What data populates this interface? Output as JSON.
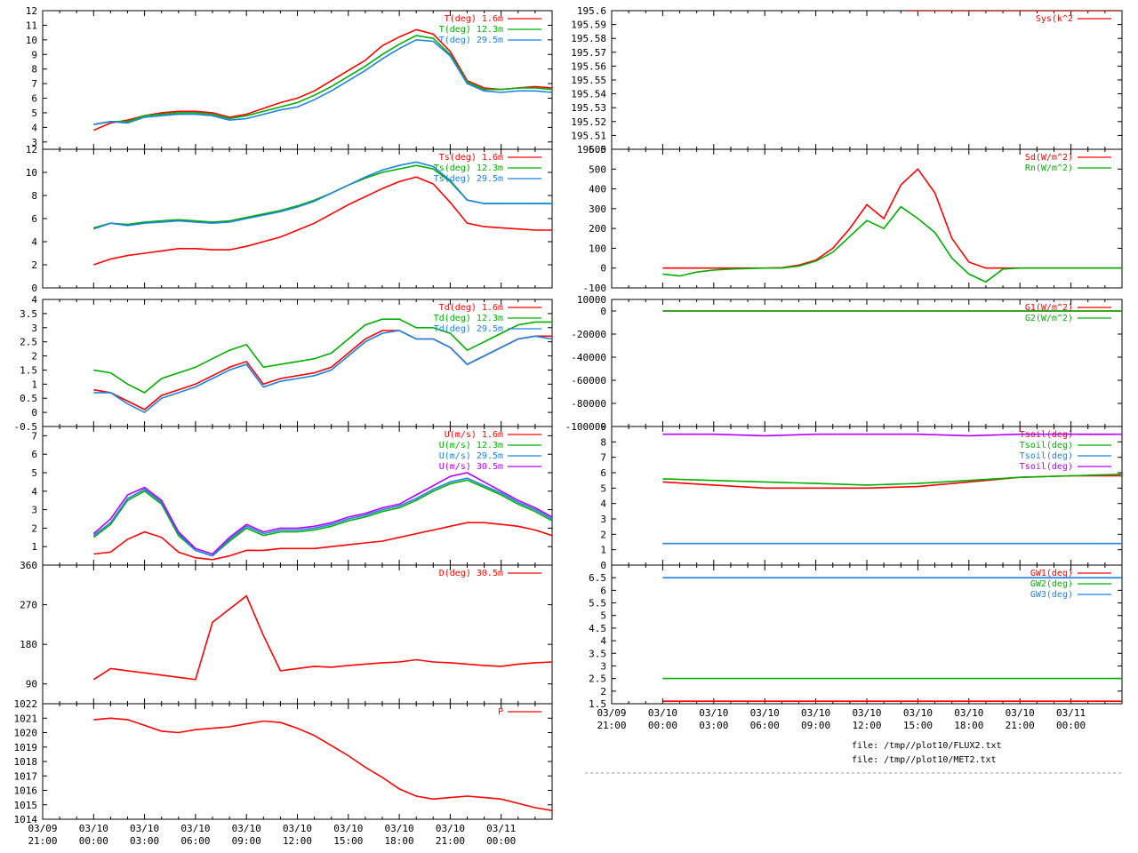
{
  "colors": {
    "red": "#ff0000",
    "green": "#00b000",
    "blue": "#1e82e6",
    "magenta": "#b400ff",
    "frame": "#000000"
  },
  "x_ticks": [
    {
      "date": "03/09",
      "time": "21:00"
    },
    {
      "date": "03/10",
      "time": "00:00"
    },
    {
      "date": "03/10",
      "time": "03:00"
    },
    {
      "date": "03/10",
      "time": "06:00"
    },
    {
      "date": "03/10",
      "time": "09:00"
    },
    {
      "date": "03/10",
      "time": "12:00"
    },
    {
      "date": "03/10",
      "time": "15:00"
    },
    {
      "date": "03/10",
      "time": "18:00"
    },
    {
      "date": "03/10",
      "time": "21:00"
    },
    {
      "date": "03/11",
      "time": "00:00"
    }
  ],
  "footer": {
    "file1": "file: /tmp//plot10/FLUX2.txt",
    "file2": "file: /tmp//plot10/MET2.txt"
  },
  "chart_data": [
    {
      "id": "T",
      "type": "line",
      "ylim": [
        2.5,
        12
      ],
      "yticks": [
        "3",
        "4",
        "5",
        "6",
        "7",
        "8",
        "9",
        "10",
        "11",
        "12"
      ],
      "x_hours": [
        0,
        1,
        2,
        3,
        4,
        5,
        6,
        7,
        8,
        9,
        10,
        11,
        12,
        13,
        14,
        15,
        16,
        17,
        18,
        19,
        20,
        21,
        22,
        23,
        24,
        25,
        26,
        27
      ],
      "series": [
        {
          "name": "T(deg)  1.6m",
          "color": "red",
          "values": [
            3.8,
            4.3,
            4.5,
            4.8,
            5.0,
            5.1,
            5.1,
            5.0,
            4.7,
            4.9,
            5.3,
            5.7,
            6.0,
            6.5,
            7.2,
            7.9,
            8.6,
            9.6,
            10.2,
            10.7,
            10.4,
            9.2,
            7.2,
            6.7,
            6.6,
            6.7,
            6.8,
            6.7
          ]
        },
        {
          "name": "T(deg)  12.3m",
          "color": "green",
          "values": [
            4.2,
            4.4,
            4.4,
            4.8,
            4.9,
            5.0,
            5.0,
            4.9,
            4.6,
            4.8,
            5.1,
            5.4,
            5.7,
            6.2,
            6.8,
            7.5,
            8.2,
            9.0,
            9.7,
            10.3,
            10.1,
            9.0,
            7.1,
            6.6,
            6.6,
            6.7,
            6.7,
            6.6
          ]
        },
        {
          "name": "T(deg)  29.5m",
          "color": "blue",
          "values": [
            4.2,
            4.4,
            4.3,
            4.7,
            4.8,
            4.9,
            4.9,
            4.8,
            4.5,
            4.6,
            4.9,
            5.2,
            5.4,
            5.9,
            6.5,
            7.2,
            7.9,
            8.7,
            9.4,
            10.0,
            9.9,
            8.9,
            7.0,
            6.5,
            6.4,
            6.5,
            6.5,
            6.4
          ]
        }
      ]
    },
    {
      "id": "Ts",
      "type": "line",
      "ylim": [
        0,
        12
      ],
      "yticks": [
        "0",
        "2",
        "4",
        "6",
        "8",
        "10",
        "12"
      ],
      "x_hours": [
        0,
        1,
        2,
        3,
        4,
        5,
        6,
        7,
        8,
        9,
        10,
        11,
        12,
        13,
        14,
        15,
        16,
        17,
        18,
        19,
        20,
        21,
        22,
        23,
        24,
        25,
        26,
        27
      ],
      "series": [
        {
          "name": "Ts(deg)  1.6m",
          "color": "red",
          "values": [
            2.0,
            2.5,
            2.8,
            3.0,
            3.2,
            3.4,
            3.4,
            3.3,
            3.3,
            3.6,
            4.0,
            4.4,
            5.0,
            5.6,
            6.4,
            7.2,
            7.9,
            8.6,
            9.2,
            9.6,
            9.0,
            7.4,
            5.6,
            5.3,
            5.2,
            5.1,
            5.0,
            5.0
          ]
        },
        {
          "name": "Ts(deg)  12.3m",
          "color": "green",
          "values": [
            5.2,
            5.6,
            5.5,
            5.7,
            5.8,
            5.9,
            5.8,
            5.7,
            5.8,
            6.1,
            6.4,
            6.7,
            7.1,
            7.6,
            8.2,
            8.9,
            9.5,
            10.0,
            10.3,
            10.6,
            10.3,
            9.2,
            7.6,
            7.3,
            7.3,
            7.3,
            7.3,
            7.3
          ]
        },
        {
          "name": "Ts(deg)  29.5m",
          "color": "blue",
          "values": [
            5.1,
            5.6,
            5.4,
            5.6,
            5.7,
            5.8,
            5.7,
            5.6,
            5.7,
            6.0,
            6.3,
            6.6,
            7.0,
            7.5,
            8.2,
            8.9,
            9.6,
            10.2,
            10.6,
            10.9,
            10.5,
            9.3,
            7.6,
            7.3,
            7.3,
            7.3,
            7.3,
            7.3
          ]
        }
      ]
    },
    {
      "id": "Td",
      "type": "line",
      "ylim": [
        -0.5,
        4
      ],
      "yticks": [
        "-0.5",
        "0",
        "0.5",
        "1",
        "1.5",
        "2",
        "2.5",
        "3",
        "3.5",
        "4"
      ],
      "x_hours": [
        0,
        1,
        2,
        3,
        4,
        5,
        6,
        7,
        8,
        9,
        10,
        11,
        12,
        13,
        14,
        15,
        16,
        17,
        18,
        19,
        20,
        21,
        22,
        23,
        24,
        25,
        26,
        27
      ],
      "series": [
        {
          "name": "Td(deg)  1.6m",
          "color": "red",
          "values": [
            0.8,
            0.7,
            0.4,
            0.1,
            0.6,
            0.8,
            1.0,
            1.3,
            1.6,
            1.8,
            1.0,
            1.2,
            1.3,
            1.4,
            1.6,
            2.1,
            2.6,
            2.9,
            2.9,
            2.6,
            2.6,
            2.3,
            1.7,
            2.0,
            2.3,
            2.6,
            2.7,
            2.7
          ]
        },
        {
          "name": "Td(deg)  12.3m",
          "color": "green",
          "values": [
            1.5,
            1.4,
            1.0,
            0.7,
            1.2,
            1.4,
            1.6,
            1.9,
            2.2,
            2.4,
            1.6,
            1.7,
            1.8,
            1.9,
            2.1,
            2.6,
            3.1,
            3.3,
            3.3,
            3.0,
            3.0,
            2.8,
            2.2,
            2.5,
            2.8,
            3.1,
            3.2,
            3.2
          ]
        },
        {
          "name": "Td(deg)  29.5m",
          "color": "blue",
          "values": [
            0.7,
            0.7,
            0.3,
            0.0,
            0.5,
            0.7,
            0.9,
            1.2,
            1.5,
            1.7,
            0.9,
            1.1,
            1.2,
            1.3,
            1.5,
            2.0,
            2.5,
            2.8,
            2.9,
            2.6,
            2.6,
            2.3,
            1.7,
            2.0,
            2.3,
            2.6,
            2.7,
            2.6
          ]
        }
      ]
    },
    {
      "id": "U",
      "type": "line",
      "ylim": [
        0,
        7.5
      ],
      "yticks": [
        "1",
        "2",
        "3",
        "4",
        "5",
        "6",
        "7"
      ],
      "x_hours": [
        0,
        1,
        2,
        3,
        4,
        5,
        6,
        7,
        8,
        9,
        10,
        11,
        12,
        13,
        14,
        15,
        16,
        17,
        18,
        19,
        20,
        21,
        22,
        23,
        24,
        25,
        26,
        27
      ],
      "series": [
        {
          "name": "U(m/s)  1.6m",
          "color": "red",
          "values": [
            0.6,
            0.7,
            1.4,
            1.8,
            1.5,
            0.7,
            0.4,
            0.3,
            0.5,
            0.8,
            0.8,
            0.9,
            0.9,
            0.9,
            1.0,
            1.1,
            1.2,
            1.3,
            1.5,
            1.7,
            1.9,
            2.1,
            2.3,
            2.3,
            2.2,
            2.1,
            1.9,
            1.6
          ]
        },
        {
          "name": "U(m/s)  12.3m",
          "color": "green",
          "values": [
            1.5,
            2.2,
            3.5,
            4.0,
            3.3,
            1.6,
            0.8,
            0.5,
            1.3,
            2.0,
            1.6,
            1.8,
            1.8,
            1.9,
            2.1,
            2.4,
            2.6,
            2.9,
            3.1,
            3.5,
            4.0,
            4.4,
            4.6,
            4.2,
            3.8,
            3.3,
            2.9,
            2.4
          ]
        },
        {
          "name": "U(m/s)  29.5m",
          "color": "blue",
          "values": [
            1.6,
            2.3,
            3.6,
            4.1,
            3.4,
            1.7,
            0.8,
            0.5,
            1.4,
            2.1,
            1.7,
            1.9,
            1.9,
            2.0,
            2.2,
            2.5,
            2.7,
            3.0,
            3.2,
            3.6,
            4.1,
            4.5,
            4.7,
            4.3,
            3.9,
            3.4,
            3.0,
            2.5
          ]
        },
        {
          "name": "U(m/s)  30.5m",
          "color": "magenta",
          "values": [
            1.7,
            2.5,
            3.8,
            4.2,
            3.5,
            1.8,
            0.9,
            0.6,
            1.5,
            2.2,
            1.8,
            2.0,
            2.0,
            2.1,
            2.3,
            2.6,
            2.8,
            3.1,
            3.3,
            3.8,
            4.3,
            4.8,
            5.0,
            4.5,
            4.0,
            3.5,
            3.1,
            2.6
          ]
        }
      ]
    },
    {
      "id": "D",
      "type": "line",
      "ylim": [
        45,
        360
      ],
      "yticks": [
        "90",
        "180",
        "270",
        "360"
      ],
      "x_hours": [
        0,
        1,
        2,
        3,
        4,
        5,
        6,
        7,
        8,
        9,
        10,
        11,
        12,
        13,
        14,
        15,
        16,
        17,
        18,
        19,
        20,
        21,
        22,
        23,
        24,
        25,
        26,
        27
      ],
      "series": [
        {
          "name": "D(deg)  30.5m",
          "color": "red",
          "values": [
            100,
            125,
            120,
            115,
            110,
            105,
            100,
            230,
            260,
            290,
            200,
            120,
            125,
            130,
            128,
            132,
            135,
            138,
            140,
            145,
            140,
            138,
            135,
            132,
            130,
            135,
            138,
            140
          ]
        }
      ]
    },
    {
      "id": "P",
      "type": "line",
      "ylim": [
        1014,
        1022
      ],
      "yticks": [
        "1014",
        "1015",
        "1016",
        "1017",
        "1018",
        "1019",
        "1020",
        "1021",
        "1022"
      ],
      "x_hours": [
        0,
        1,
        2,
        3,
        4,
        5,
        6,
        7,
        8,
        9,
        10,
        11,
        12,
        13,
        14,
        15,
        16,
        17,
        18,
        19,
        20,
        21,
        22,
        23,
        24,
        25,
        26,
        27
      ],
      "series": [
        {
          "name": "P",
          "color": "red",
          "values": [
            1020.9,
            1021.0,
            1020.9,
            1020.5,
            1020.1,
            1020.0,
            1020.2,
            1020.3,
            1020.4,
            1020.6,
            1020.8,
            1020.7,
            1020.3,
            1019.8,
            1019.1,
            1018.4,
            1017.6,
            1016.9,
            1016.1,
            1015.6,
            1015.4,
            1015.5,
            1015.6,
            1015.5,
            1015.4,
            1015.1,
            1014.8,
            1014.6
          ]
        }
      ]
    },
    {
      "id": "Sys",
      "type": "line",
      "ylim": [
        195.5,
        195.6
      ],
      "yticks": [
        "195.5",
        "195.51",
        "195.52",
        "195.53",
        "195.54",
        "195.55",
        "195.56",
        "195.57",
        "195.58",
        "195.59",
        "195.6"
      ],
      "x_hours": [
        14.3,
        27
      ],
      "series": [
        {
          "name": "Sys(k^2",
          "color": "red",
          "values": [
            195.6,
            195.6
          ]
        }
      ]
    },
    {
      "id": "Rad",
      "type": "line",
      "ylim": [
        -100,
        600
      ],
      "yticks": [
        "-100",
        "0",
        "100",
        "200",
        "300",
        "400",
        "500",
        "600"
      ],
      "x_hours": [
        0,
        1,
        2,
        3,
        4,
        5,
        6,
        7,
        8,
        9,
        10,
        11,
        12,
        13,
        14,
        15,
        16,
        17,
        18,
        19,
        20,
        21,
        22,
        23,
        24,
        25,
        26,
        27
      ],
      "series": [
        {
          "name": "Sd(W/m^2)",
          "color": "red",
          "values": [
            0,
            0,
            0,
            0,
            0,
            0,
            0,
            2,
            15,
            40,
            100,
            200,
            320,
            250,
            420,
            500,
            380,
            150,
            30,
            0,
            0,
            0,
            0,
            0,
            0,
            0,
            0,
            0
          ]
        },
        {
          "name": "Rn(W/m^2)",
          "color": "green",
          "values": [
            -30,
            -40,
            -20,
            -10,
            -5,
            -2,
            0,
            0,
            10,
            35,
            80,
            160,
            240,
            200,
            310,
            250,
            180,
            50,
            -30,
            -70,
            -5,
            0,
            0,
            0,
            0,
            0,
            0,
            0
          ]
        }
      ]
    },
    {
      "id": "G",
      "type": "line",
      "ylim": [
        -100000,
        10000
      ],
      "yticks": [
        "-100000",
        "-80000",
        "-60000",
        "-40000",
        "-20000",
        "0",
        "10000"
      ],
      "x_hours": [
        0,
        27
      ],
      "series": [
        {
          "name": "G1(W/m^2)",
          "color": "red",
          "values": [
            0,
            0
          ]
        },
        {
          "name": "G2(W/m^2)",
          "color": "green",
          "values": [
            0,
            0
          ]
        }
      ]
    },
    {
      "id": "Tsoil",
      "type": "line",
      "ylim": [
        0,
        9
      ],
      "yticks": [
        "0",
        "1",
        "2",
        "3",
        "4",
        "5",
        "6",
        "7",
        "8",
        "9"
      ],
      "x_hours": [
        0,
        3,
        6,
        9,
        12,
        15,
        18,
        21,
        24,
        27
      ],
      "series": [
        {
          "name": "Tsoil(deg)",
          "color": "red",
          "values": [
            5.4,
            5.2,
            5.0,
            5.0,
            5.0,
            5.1,
            5.4,
            5.7,
            5.8,
            5.8
          ]
        },
        {
          "name": "Tsoil(deg)",
          "color": "green",
          "values": [
            5.6,
            5.5,
            5.4,
            5.3,
            5.2,
            5.3,
            5.5,
            5.7,
            5.8,
            5.9
          ]
        },
        {
          "name": "Tsoil(deg)",
          "color": "blue",
          "values": [
            1.4,
            1.4,
            1.4,
            1.4,
            1.4,
            1.4,
            1.4,
            1.4,
            1.4,
            1.4
          ]
        },
        {
          "name": "Tsoil(deg)",
          "color": "magenta",
          "values": [
            8.5,
            8.5,
            8.4,
            8.5,
            8.5,
            8.5,
            8.4,
            8.5,
            8.5,
            8.5
          ]
        }
      ]
    },
    {
      "id": "GW",
      "type": "line",
      "ylim": [
        1.5,
        7
      ],
      "yticks": [
        "1.5",
        "2",
        "2.5",
        "3",
        "3.5",
        "4",
        "4.5",
        "5",
        "5.5",
        "6",
        "6.5"
      ],
      "x_hours": [
        0,
        27
      ],
      "series": [
        {
          "name": "GW1(deg)",
          "color": "red",
          "values": [
            1.6,
            1.6
          ]
        },
        {
          "name": "GW2(deg)",
          "color": "green",
          "values": [
            2.5,
            2.5
          ]
        },
        {
          "name": "GW3(deg)",
          "color": "blue",
          "values": [
            6.5,
            6.5
          ]
        }
      ]
    }
  ]
}
